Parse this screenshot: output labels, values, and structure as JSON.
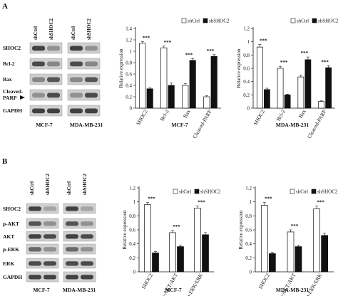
{
  "panels": [
    {
      "letter": "A",
      "blot": {
        "lanes": [
          "shCtrl",
          "shSHOC2"
        ],
        "rows": [
          "SHOC2",
          "Bcl-2",
          "Bax",
          "Cleaved-\nPARP",
          "GAPDH"
        ],
        "cell_lines": [
          "MCF-7",
          "MDA-MB-231"
        ]
      }
    },
    {
      "letter": "B",
      "blot": {
        "lanes": [
          "shCtrl",
          "shSHOC2"
        ],
        "rows": [
          "SHOC2",
          "p-AKT",
          "AKT",
          "p-ERK",
          "ERK",
          "GAPDH"
        ],
        "cell_lines": [
          "MCF-7",
          "MDA-MB-231"
        ]
      }
    }
  ],
  "chart_data": [
    {
      "type": "bar",
      "title": "MCF-7",
      "ylabel": "Relative expression",
      "ylim": [
        0,
        1.4
      ],
      "yticks": [
        "0",
        "0.2",
        "0.4",
        "0.6",
        "0.8",
        "1",
        "1.2",
        "1.4"
      ],
      "categories": [
        "SHOC2",
        "Bcl-2",
        "Bax",
        "Cleaved-PARP"
      ],
      "series": [
        {
          "name": "shCtrl",
          "values": [
            1.14,
            1.06,
            0.4,
            0.2
          ],
          "errors": [
            0.03,
            0.03,
            0.03,
            0.02
          ],
          "color": "#ffffff"
        },
        {
          "name": "shSHOC2",
          "values": [
            0.34,
            0.4,
            0.84,
            0.91
          ],
          "errors": [
            0.02,
            0.04,
            0.03,
            0.03
          ],
          "color": "#111111"
        }
      ],
      "annotations": [
        "***",
        "***",
        "***",
        "***"
      ],
      "legend": "top-right"
    },
    {
      "type": "bar",
      "title": "MDA-MB-231",
      "ylabel": "Relative expression",
      "ylim": [
        0,
        1.2
      ],
      "yticks": [
        "0",
        "0.2",
        "0.4",
        "0.6",
        "0.8",
        "1",
        "1.2"
      ],
      "categories": [
        "SHOC2",
        "Bcl-2",
        "Bax",
        "Cleaved-PARP"
      ],
      "series": [
        {
          "name": "shCtrl",
          "values": [
            0.92,
            0.6,
            0.47,
            0.1
          ],
          "errors": [
            0.04,
            0.03,
            0.03,
            0.01
          ],
          "color": "#ffffff"
        },
        {
          "name": "shSHOC2",
          "values": [
            0.28,
            0.2,
            0.73,
            0.61
          ],
          "errors": [
            0.02,
            0.01,
            0.04,
            0.03
          ],
          "color": "#111111"
        }
      ],
      "annotations": [
        "***",
        "***",
        "***",
        "***"
      ],
      "legend": "top-right"
    },
    {
      "type": "bar",
      "title": "MCF-7",
      "ylabel": "Relative expression",
      "ylim": [
        0,
        1.2
      ],
      "yticks": [
        "0",
        "0.2",
        "0.4",
        "0.6",
        "0.8",
        "1",
        "1.2"
      ],
      "categories": [
        "SHOC2",
        "p-AKT/AKT",
        "p-ERK/ERK"
      ],
      "series": [
        {
          "name": "shCtrl",
          "values": [
            0.96,
            0.56,
            0.91
          ],
          "errors": [
            0.03,
            0.03,
            0.03
          ],
          "color": "#ffffff"
        },
        {
          "name": "shSHOC2",
          "values": [
            0.27,
            0.36,
            0.53
          ],
          "errors": [
            0.02,
            0.02,
            0.03
          ],
          "color": "#111111"
        }
      ],
      "annotations": [
        "***",
        "***",
        "***"
      ],
      "legend": "top-right"
    },
    {
      "type": "bar",
      "title": "MDA-MB-231",
      "ylabel": "Relative expression",
      "ylim": [
        0,
        1.2
      ],
      "yticks": [
        "0",
        "0.2",
        "0.4",
        "0.6",
        "0.8",
        "1",
        "1.2"
      ],
      "categories": [
        "SHOC2",
        "p-AKT/AKT",
        "p-ERK/ERK"
      ],
      "series": [
        {
          "name": "shCtrl",
          "values": [
            0.95,
            0.57,
            0.9
          ],
          "errors": [
            0.04,
            0.03,
            0.04
          ],
          "color": "#ffffff"
        },
        {
          "name": "shSHOC2",
          "values": [
            0.26,
            0.36,
            0.52
          ],
          "errors": [
            0.02,
            0.02,
            0.03
          ],
          "color": "#111111"
        }
      ],
      "annotations": [
        "***",
        "***",
        "***"
      ],
      "legend": "top-right"
    }
  ]
}
